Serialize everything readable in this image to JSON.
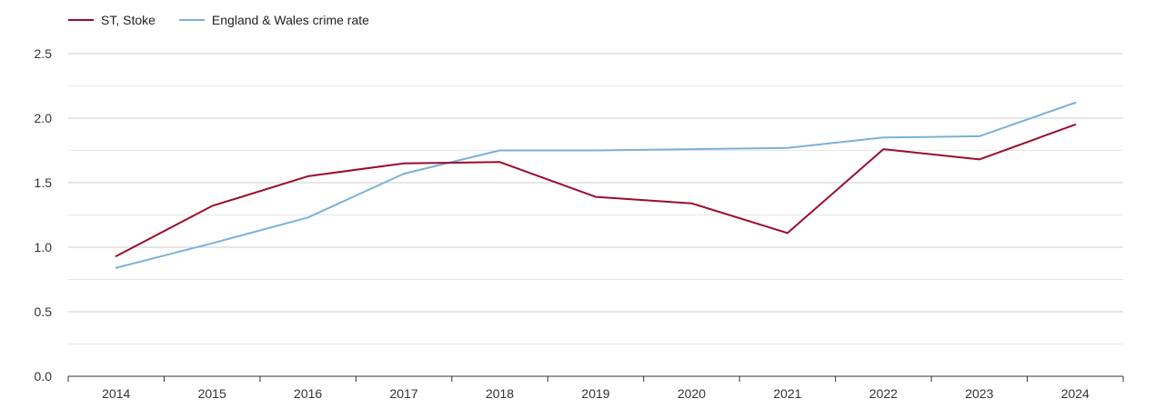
{
  "colors": {
    "stoke": "#9b0c2e",
    "england_wales": "#79b2d6",
    "grid_major": "#cccccc",
    "grid_minor": "#e6e6e6",
    "axis": "#333333"
  },
  "chart_data": {
    "type": "line",
    "title": "",
    "xlabel": "",
    "ylabel": "",
    "ylim": [
      0,
      2.5
    ],
    "yticks": [
      "0.0",
      "0.5",
      "1.0",
      "1.5",
      "2.0",
      "2.5"
    ],
    "categories": [
      "2014",
      "2015",
      "2016",
      "2017",
      "2018",
      "2019",
      "2020",
      "2021",
      "2022",
      "2023",
      "2024"
    ],
    "legend_position": "top-left",
    "grid": true,
    "series": [
      {
        "name": "ST, Stoke",
        "color_key": "stoke",
        "values": [
          0.93,
          1.32,
          1.55,
          1.65,
          1.66,
          1.39,
          1.34,
          1.11,
          1.76,
          1.68,
          1.95
        ]
      },
      {
        "name": "England & Wales crime rate",
        "color_key": "england_wales",
        "values": [
          0.84,
          1.03,
          1.23,
          1.57,
          1.75,
          1.75,
          1.76,
          1.77,
          1.85,
          1.86,
          2.12
        ]
      }
    ]
  }
}
